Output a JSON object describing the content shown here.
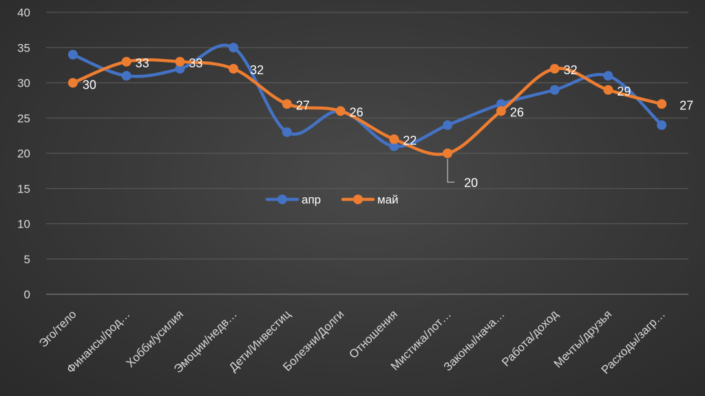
{
  "chart_data": {
    "type": "line",
    "title": "",
    "xlabel": "",
    "ylabel": "",
    "ylim": [
      0,
      40
    ],
    "yticks": [
      0,
      5,
      10,
      15,
      20,
      25,
      30,
      35,
      40
    ],
    "grid": true,
    "legend_position": "center",
    "categories": [
      "Эго/тело",
      "Финансы/род…",
      "Хобби/усилия",
      "Эмоции/недв…",
      "Дети/Инвестиц",
      "Болезни/Долги",
      "Отношения",
      "Мистика/лот…",
      "Законы/нача…",
      "Работа/доход",
      "Мечты/друзья",
      "Расходы/загр…"
    ],
    "series": [
      {
        "name": "апр",
        "color": "#4472c4",
        "values": [
          34,
          31,
          32,
          35,
          23,
          26,
          21,
          24,
          27,
          29,
          31,
          24
        ]
      },
      {
        "name": "май",
        "color": "#ed7d31",
        "values": [
          30,
          33,
          33,
          32,
          27,
          26,
          22,
          20,
          26,
          32,
          29,
          27
        ]
      }
    ],
    "data_labels": [
      "30",
      "33",
      "33",
      "32",
      "27",
      "26",
      "22",
      "20",
      "26",
      "32",
      "29",
      "27"
    ]
  }
}
